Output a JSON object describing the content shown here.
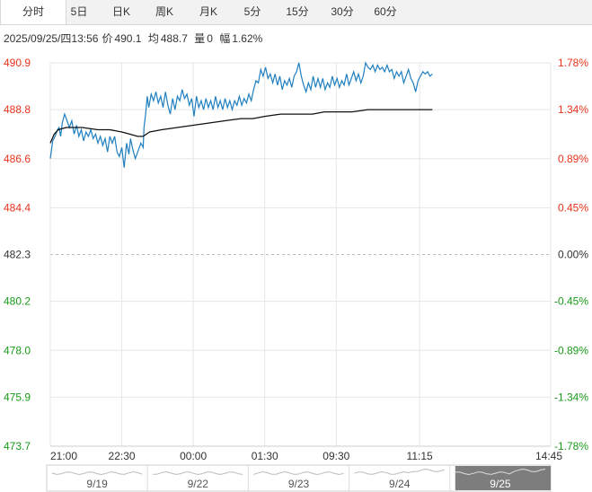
{
  "tabs": [
    "分时",
    "5日",
    "日K",
    "周K",
    "月K",
    "5分",
    "15分",
    "30分",
    "60分"
  ],
  "active_tab": 0,
  "info": {
    "datetime": "2025/09/25/四13:56",
    "price_label": "价",
    "price": "490.1",
    "avg_label": "均",
    "avg": "488.7",
    "vol_label": "量",
    "vol": "0",
    "chg_label": "幅",
    "chg": "1.62%"
  },
  "colors": {
    "up": "#e8331c",
    "down": "#1a9a1a",
    "neutral": "#333333",
    "price_line": "#1f7fbf",
    "avg_line": "#111111",
    "grid": "#e6e6e6"
  },
  "chart_data": {
    "type": "line",
    "y_labels": [
      "490.9",
      "488.8",
      "486.6",
      "484.4",
      "482.3",
      "480.2",
      "478.0",
      "475.9",
      "473.7"
    ],
    "y_values": [
      490.9,
      488.8,
      486.6,
      484.4,
      482.3,
      480.2,
      478.0,
      475.9,
      473.7
    ],
    "pct_labels": [
      "1.78%",
      "1.34%",
      "0.89%",
      "0.45%",
      "0.00%",
      "-0.45%",
      "-0.89%",
      "-1.34%",
      "-1.78%"
    ],
    "ylim": [
      473.7,
      490.9
    ],
    "x_ticks": [
      "21:00",
      "22:30",
      "00:00",
      "01:30",
      "09:30",
      "11:15",
      "14:45"
    ],
    "x_range": [
      0,
      630
    ],
    "x_tick_times": [
      0,
      90,
      180,
      270,
      360,
      465,
      630
    ],
    "prev_close": 482.3,
    "series": [
      {
        "values": [
          [
            0,
            486.6
          ],
          [
            3,
            487.4
          ],
          [
            6,
            487.6
          ],
          [
            9,
            487.9
          ],
          [
            11,
            488.0
          ],
          [
            13,
            487.6
          ],
          [
            15,
            488.2
          ],
          [
            18,
            488.6
          ],
          [
            21,
            488.3
          ],
          [
            24,
            488.0
          ],
          [
            27,
            488.3
          ],
          [
            30,
            487.7
          ],
          [
            33,
            488.1
          ],
          [
            36,
            487.6
          ],
          [
            39,
            487.9
          ],
          [
            42,
            487.4
          ],
          [
            45,
            487.8
          ],
          [
            48,
            487.6
          ],
          [
            51,
            487.9
          ],
          [
            54,
            487.5
          ],
          [
            57,
            487.7
          ],
          [
            60,
            487.3
          ],
          [
            63,
            487.6
          ],
          [
            66,
            487.2
          ],
          [
            69,
            487.5
          ],
          [
            72,
            486.9
          ],
          [
            75,
            487.6
          ],
          [
            78,
            487.3
          ],
          [
            81,
            487.6
          ],
          [
            84,
            486.9
          ],
          [
            87,
            486.7
          ],
          [
            90,
            487.1
          ],
          [
            93,
            486.2
          ],
          [
            96,
            487.3
          ],
          [
            99,
            486.8
          ],
          [
            101,
            487.5
          ],
          [
            104,
            487.0
          ],
          [
            107,
            486.6
          ],
          [
            110,
            486.9
          ],
          [
            114,
            487.3
          ],
          [
            117,
            487.1
          ],
          [
            118,
            488.0
          ],
          [
            120,
            488.6
          ],
          [
            122,
            489.4
          ],
          [
            124,
            488.9
          ],
          [
            127,
            489.5
          ],
          [
            130,
            489.2
          ],
          [
            133,
            489.6
          ],
          [
            136,
            489.1
          ],
          [
            139,
            489.4
          ],
          [
            142,
            488.9
          ],
          [
            145,
            489.6
          ],
          [
            148,
            489.0
          ],
          [
            151,
            488.6
          ],
          [
            154,
            489.3
          ],
          [
            157,
            488.8
          ],
          [
            160,
            489.4
          ],
          [
            163,
            489.2
          ],
          [
            166,
            489.7
          ],
          [
            169,
            489.3
          ],
          [
            172,
            489.5
          ],
          [
            175,
            489.0
          ],
          [
            178,
            489.3
          ],
          [
            181,
            488.5
          ],
          [
            184,
            489.4
          ],
          [
            187,
            488.9
          ],
          [
            190,
            489.2
          ],
          [
            193,
            488.8
          ],
          [
            196,
            489.3
          ],
          [
            199,
            488.9
          ],
          [
            202,
            489.2
          ],
          [
            205,
            488.8
          ],
          [
            208,
            489.4
          ],
          [
            211,
            488.9
          ],
          [
            214,
            489.2
          ],
          [
            217,
            488.8
          ],
          [
            220,
            489.3
          ],
          [
            223,
            488.9
          ],
          [
            226,
            489.2
          ],
          [
            229,
            488.8
          ],
          [
            232,
            489.2
          ],
          [
            235,
            489.0
          ],
          [
            238,
            489.4
          ],
          [
            241,
            489.0
          ],
          [
            244,
            489.3
          ],
          [
            247,
            489.1
          ],
          [
            250,
            489.5
          ],
          [
            253,
            489.2
          ],
          [
            256,
            489.7
          ],
          [
            259,
            490.1
          ],
          [
            262,
            490.0
          ],
          [
            265,
            490.6
          ],
          [
            268,
            490.3
          ],
          [
            271,
            490.7
          ],
          [
            274,
            490.2
          ],
          [
            277,
            490.4
          ],
          [
            280,
            490.0
          ],
          [
            283,
            490.4
          ],
          [
            286,
            489.9
          ],
          [
            289,
            490.3
          ],
          [
            292,
            489.7
          ],
          [
            295,
            490.1
          ],
          [
            298,
            489.9
          ],
          [
            301,
            490.2
          ],
          [
            304,
            489.8
          ],
          [
            307,
            490.3
          ],
          [
            310,
            490.5
          ],
          [
            313,
            490.9
          ],
          [
            316,
            490.3
          ],
          [
            319,
            489.9
          ],
          [
            322,
            489.6
          ],
          [
            325,
            490.0
          ],
          [
            328,
            489.7
          ],
          [
            331,
            490.3
          ],
          [
            334,
            489.8
          ],
          [
            337,
            490.2
          ],
          [
            340,
            489.8
          ],
          [
            343,
            490.2
          ],
          [
            346,
            489.7
          ],
          [
            349,
            490.0
          ],
          [
            352,
            489.8
          ],
          [
            355,
            490.3
          ],
          [
            358,
            489.9
          ],
          [
            361,
            490.2
          ],
          [
            364,
            489.8
          ],
          [
            367,
            490.1
          ],
          [
            370,
            489.9
          ],
          [
            373,
            490.4
          ],
          [
            376,
            489.9
          ],
          [
            379,
            490.2
          ],
          [
            382,
            490.5
          ],
          [
            385,
            490.1
          ],
          [
            388,
            490.4
          ],
          [
            391,
            490.0
          ],
          [
            394,
            490.3
          ],
          [
            397,
            490.9
          ],
          [
            400,
            490.7
          ],
          [
            403,
            490.6
          ],
          [
            406,
            490.8
          ],
          [
            409,
            490.5
          ],
          [
            412,
            490.8
          ],
          [
            415,
            490.6
          ],
          [
            418,
            490.7
          ],
          [
            421,
            490.5
          ],
          [
            424,
            490.8
          ],
          [
            427,
            490.5
          ],
          [
            430,
            490.6
          ],
          [
            433,
            490.2
          ],
          [
            436,
            490.5
          ],
          [
            439,
            490.3
          ],
          [
            442,
            490.5
          ],
          [
            445,
            490.0
          ],
          [
            448,
            490.3
          ],
          [
            451,
            490.6
          ],
          [
            454,
            490.2
          ],
          [
            457,
            490.0
          ],
          [
            460,
            489.6
          ],
          [
            463,
            490.1
          ],
          [
            466,
            490.3
          ],
          [
            469,
            490.5
          ],
          [
            472,
            490.4
          ],
          [
            475,
            490.5
          ],
          [
            478,
            490.3
          ],
          [
            481,
            490.4
          ]
        ]
      },
      {
        "values": [
          [
            0,
            487.3
          ],
          [
            5,
            487.7
          ],
          [
            10,
            487.9
          ],
          [
            20,
            488.0
          ],
          [
            40,
            488.0
          ],
          [
            60,
            487.9
          ],
          [
            75,
            487.9
          ],
          [
            90,
            487.8
          ],
          [
            100,
            487.7
          ],
          [
            110,
            487.6
          ],
          [
            117,
            487.6
          ],
          [
            125,
            487.8
          ],
          [
            140,
            487.9
          ],
          [
            160,
            488.0
          ],
          [
            180,
            488.1
          ],
          [
            200,
            488.2
          ],
          [
            220,
            488.3
          ],
          [
            240,
            488.4
          ],
          [
            255,
            488.4
          ],
          [
            270,
            488.5
          ],
          [
            290,
            488.6
          ],
          [
            310,
            488.6
          ],
          [
            330,
            488.6
          ],
          [
            345,
            488.7
          ],
          [
            360,
            488.7
          ],
          [
            380,
            488.7
          ],
          [
            400,
            488.8
          ],
          [
            420,
            488.8
          ],
          [
            440,
            488.8
          ],
          [
            460,
            488.8
          ],
          [
            481,
            488.8
          ]
        ]
      }
    ],
    "grid": true
  },
  "navigator": {
    "labels": [
      "9/19",
      "9/22",
      "9/23",
      "9/24",
      "9/25"
    ],
    "active_index": 4
  }
}
